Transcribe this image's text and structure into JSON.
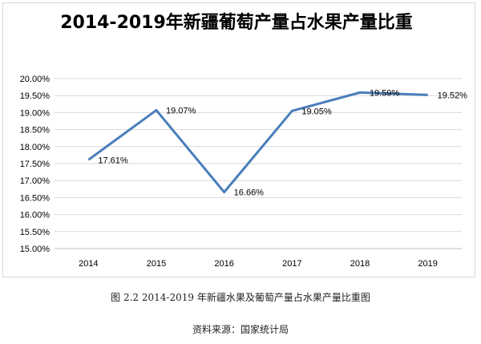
{
  "figure": {
    "caption": "图 2.2 2014-2019 年新疆水果及葡萄产量占水果产量比重图",
    "source": "资料来源：国家统计局"
  },
  "chart_data": {
    "type": "line",
    "title": "2014-2019年新疆葡萄产量占水果产量比重",
    "xlabel": "",
    "ylabel": "",
    "categories": [
      "2014",
      "2015",
      "2016",
      "2017",
      "2018",
      "2019"
    ],
    "series": [
      {
        "values": [
          17.61,
          19.07,
          16.66,
          19.05,
          19.59,
          19.52
        ],
        "data_labels": [
          "17.61%",
          "19.07%",
          "16.66%",
          "19.05%",
          "19.59%",
          "19.52%"
        ],
        "color": "#4a7ebb"
      }
    ],
    "ylim": [
      15.0,
      20.0
    ],
    "ytick_step": 0.5,
    "y_tick_labels": [
      "15.00%",
      "15.50%",
      "16.00%",
      "16.50%",
      "17.00%",
      "17.50%",
      "18.00%",
      "18.50%",
      "19.00%",
      "19.50%",
      "20.00%"
    ],
    "grid": true,
    "legend": "none"
  },
  "colors": {
    "line": "#4a7ebb",
    "grid": "#d9d9d9",
    "axis": "#bfbfbf",
    "text": "#000000"
  }
}
